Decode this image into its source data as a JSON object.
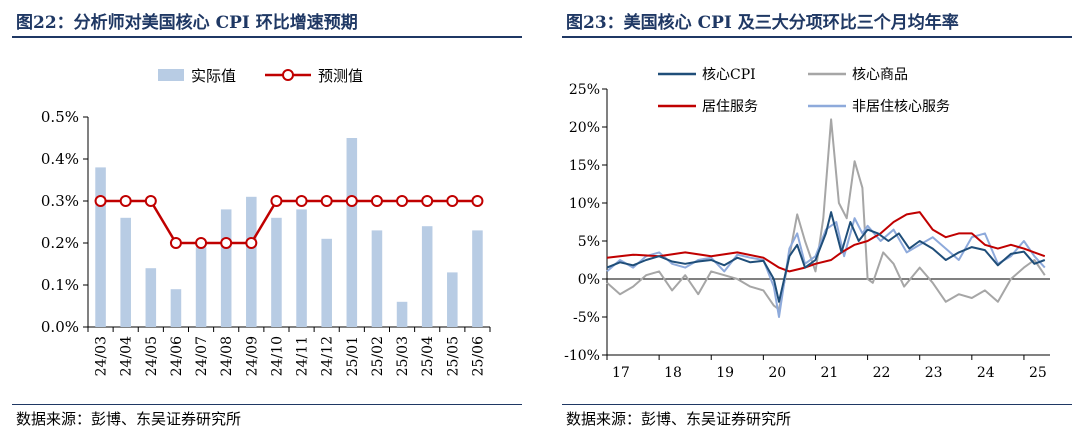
{
  "charts": [
    {
      "title": "图22：分析师对美国核心 CPI 环比增速预期",
      "source": "数据来源：彭博、东吴证券研究所"
    },
    {
      "title": "图23：美国核心 CPI 及三大分项环比三个月均年率",
      "source": "数据来源：彭博、东吴证券研究所"
    }
  ],
  "colors": {
    "title": "#1f3864",
    "actual_bar": "#b8cce4",
    "forecast_line": "#c00000",
    "core_cpi": "#1f4e79",
    "core_goods": "#a6a6a6",
    "shelter": "#c00000",
    "supercore": "#8eaadb"
  },
  "chart_data": [
    {
      "type": "bar",
      "title": "图22：分析师对美国核心 CPI 环比增速预期",
      "categories": [
        "24/03",
        "24/04",
        "24/05",
        "24/06",
        "24/07",
        "24/08",
        "24/09",
        "24/10",
        "24/11",
        "24/12",
        "25/01",
        "25/02",
        "25/03",
        "25/04",
        "25/05",
        "25/06"
      ],
      "series": [
        {
          "name": "实际值",
          "type": "bar",
          "values": [
            0.38,
            0.26,
            0.14,
            0.09,
            0.19,
            0.28,
            0.31,
            0.26,
            0.28,
            0.21,
            0.45,
            0.23,
            0.06,
            0.24,
            0.13,
            0.23
          ]
        },
        {
          "name": "预测值",
          "type": "line",
          "values": [
            0.3,
            0.3,
            0.3,
            0.2,
            0.2,
            0.2,
            0.2,
            0.3,
            0.3,
            0.3,
            0.3,
            0.3,
            0.3,
            0.3,
            0.3,
            0.3
          ]
        }
      ],
      "y_ticks": [
        "0.0%",
        "0.1%",
        "0.2%",
        "0.3%",
        "0.4%",
        "0.5%"
      ],
      "ylim": [
        0,
        0.5
      ],
      "legend_position": "top-center",
      "grid": false
    },
    {
      "type": "line",
      "title": "图23：美国核心 CPI 及三大分项环比三个月均年率",
      "x_ticks": [
        "17",
        "18",
        "19",
        "20",
        "21",
        "22",
        "23",
        "24",
        "25"
      ],
      "xlim": [
        2017.0,
        2025.5
      ],
      "y_ticks": [
        "-10%",
        "-5%",
        "0%",
        "5%",
        "10%",
        "15%",
        "20%",
        "25%"
      ],
      "ylim": [
        -10,
        25
      ],
      "legend_position": "top-left",
      "grid": false,
      "series": [
        {
          "name": "核心CPI",
          "points": [
            [
              2017.0,
              1.5
            ],
            [
              2017.25,
              2.2
            ],
            [
              2017.5,
              1.8
            ],
            [
              2017.75,
              2.5
            ],
            [
              2018.0,
              3.0
            ],
            [
              2018.25,
              2.3
            ],
            [
              2018.5,
              2.0
            ],
            [
              2018.75,
              2.3
            ],
            [
              2019.0,
              2.5
            ],
            [
              2019.25,
              1.8
            ],
            [
              2019.5,
              2.8
            ],
            [
              2019.75,
              2.2
            ],
            [
              2020.0,
              2.4
            ],
            [
              2020.2,
              0.0
            ],
            [
              2020.3,
              -3.0
            ],
            [
              2020.5,
              3.0
            ],
            [
              2020.65,
              4.5
            ],
            [
              2020.8,
              1.5
            ],
            [
              2021.0,
              2.5
            ],
            [
              2021.2,
              6.0
            ],
            [
              2021.3,
              8.8
            ],
            [
              2021.5,
              3.5
            ],
            [
              2021.67,
              7.5
            ],
            [
              2021.83,
              5.0
            ],
            [
              2022.0,
              6.5
            ],
            [
              2022.2,
              6.0
            ],
            [
              2022.4,
              5.0
            ],
            [
              2022.6,
              6.0
            ],
            [
              2022.8,
              4.0
            ],
            [
              2023.0,
              5.0
            ],
            [
              2023.25,
              4.0
            ],
            [
              2023.5,
              2.5
            ],
            [
              2023.75,
              3.5
            ],
            [
              2024.0,
              4.2
            ],
            [
              2024.25,
              3.8
            ],
            [
              2024.5,
              1.8
            ],
            [
              2024.75,
              3.3
            ],
            [
              2025.0,
              3.6
            ],
            [
              2025.2,
              2.0
            ],
            [
              2025.4,
              2.5
            ]
          ]
        },
        {
          "name": "核心商品",
          "points": [
            [
              2017.0,
              -0.5
            ],
            [
              2017.25,
              -2.0
            ],
            [
              2017.5,
              -1.0
            ],
            [
              2017.75,
              0.5
            ],
            [
              2018.0,
              1.0
            ],
            [
              2018.25,
              -1.5
            ],
            [
              2018.5,
              0.5
            ],
            [
              2018.75,
              -2.0
            ],
            [
              2019.0,
              1.0
            ],
            [
              2019.25,
              0.5
            ],
            [
              2019.5,
              0.0
            ],
            [
              2019.75,
              -1.0
            ],
            [
              2020.0,
              -1.5
            ],
            [
              2020.2,
              -3.5
            ],
            [
              2020.3,
              -4.0
            ],
            [
              2020.5,
              3.0
            ],
            [
              2020.65,
              8.5
            ],
            [
              2020.8,
              5.0
            ],
            [
              2021.0,
              1.0
            ],
            [
              2021.15,
              8.0
            ],
            [
              2021.3,
              21.0
            ],
            [
              2021.45,
              10.0
            ],
            [
              2021.6,
              8.0
            ],
            [
              2021.75,
              15.5
            ],
            [
              2021.9,
              12.0
            ],
            [
              2022.0,
              0.0
            ],
            [
              2022.1,
              -0.5
            ],
            [
              2022.3,
              3.5
            ],
            [
              2022.5,
              2.0
            ],
            [
              2022.7,
              -1.0
            ],
            [
              2023.0,
              1.5
            ],
            [
              2023.25,
              -0.5
            ],
            [
              2023.5,
              -3.0
            ],
            [
              2023.75,
              -2.0
            ],
            [
              2024.0,
              -2.5
            ],
            [
              2024.25,
              -1.5
            ],
            [
              2024.5,
              -3.0
            ],
            [
              2024.75,
              0.0
            ],
            [
              2025.0,
              1.5
            ],
            [
              2025.2,
              2.5
            ],
            [
              2025.4,
              0.5
            ]
          ]
        },
        {
          "name": "居住服务",
          "points": [
            [
              2017.0,
              2.8
            ],
            [
              2017.5,
              3.2
            ],
            [
              2018.0,
              3.0
            ],
            [
              2018.5,
              3.5
            ],
            [
              2019.0,
              3.0
            ],
            [
              2019.5,
              3.5
            ],
            [
              2020.0,
              2.8
            ],
            [
              2020.3,
              1.5
            ],
            [
              2020.5,
              1.0
            ],
            [
              2020.8,
              1.5
            ],
            [
              2021.0,
              2.0
            ],
            [
              2021.3,
              2.5
            ],
            [
              2021.5,
              3.5
            ],
            [
              2021.75,
              4.5
            ],
            [
              2022.0,
              5.0
            ],
            [
              2022.25,
              6.0
            ],
            [
              2022.5,
              7.5
            ],
            [
              2022.75,
              8.5
            ],
            [
              2023.0,
              8.8
            ],
            [
              2023.25,
              6.5
            ],
            [
              2023.5,
              5.5
            ],
            [
              2023.75,
              6.0
            ],
            [
              2024.0,
              6.0
            ],
            [
              2024.25,
              4.5
            ],
            [
              2024.5,
              4.0
            ],
            [
              2024.75,
              4.5
            ],
            [
              2025.0,
              4.0
            ],
            [
              2025.2,
              3.5
            ],
            [
              2025.4,
              3.0
            ]
          ]
        },
        {
          "name": "非居住核心服务",
          "points": [
            [
              2017.0,
              1.0
            ],
            [
              2017.25,
              2.5
            ],
            [
              2017.5,
              1.5
            ],
            [
              2017.75,
              3.0
            ],
            [
              2018.0,
              3.5
            ],
            [
              2018.25,
              2.0
            ],
            [
              2018.5,
              1.5
            ],
            [
              2018.75,
              2.5
            ],
            [
              2019.0,
              2.8
            ],
            [
              2019.25,
              1.0
            ],
            [
              2019.5,
              3.2
            ],
            [
              2019.75,
              2.8
            ],
            [
              2020.0,
              2.5
            ],
            [
              2020.2,
              -1.0
            ],
            [
              2020.3,
              -5.0
            ],
            [
              2020.5,
              4.0
            ],
            [
              2020.65,
              6.0
            ],
            [
              2020.8,
              2.0
            ],
            [
              2021.0,
              3.0
            ],
            [
              2021.2,
              6.5
            ],
            [
              2021.4,
              7.5
            ],
            [
              2021.55,
              3.0
            ],
            [
              2021.75,
              8.0
            ],
            [
              2021.9,
              6.0
            ],
            [
              2022.0,
              7.0
            ],
            [
              2022.25,
              5.0
            ],
            [
              2022.5,
              6.5
            ],
            [
              2022.75,
              3.5
            ],
            [
              2023.0,
              4.5
            ],
            [
              2023.25,
              5.5
            ],
            [
              2023.5,
              4.0
            ],
            [
              2023.75,
              2.5
            ],
            [
              2024.0,
              5.5
            ],
            [
              2024.25,
              6.0
            ],
            [
              2024.5,
              2.0
            ],
            [
              2024.75,
              3.0
            ],
            [
              2025.0,
              5.0
            ],
            [
              2025.2,
              3.0
            ],
            [
              2025.4,
              1.5
            ]
          ]
        }
      ]
    }
  ]
}
